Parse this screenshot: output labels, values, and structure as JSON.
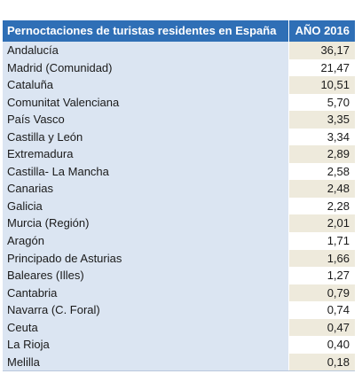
{
  "table": {
    "header": {
      "col1": "Pernoctaciones de turistas residentes en España",
      "col2": "AÑO 2016"
    },
    "rows": [
      {
        "region": "Andalucía",
        "value": "36,17"
      },
      {
        "region": "Madrid (Comunidad)",
        "value": "21,47"
      },
      {
        "region": "Cataluña",
        "value": "10,51"
      },
      {
        "region": "Comunitat Valenciana",
        "value": "5,70"
      },
      {
        "region": "País Vasco",
        "value": "3,35"
      },
      {
        "region": "Castilla y León",
        "value": "3,34"
      },
      {
        "region": "Extremadura",
        "value": "2,89"
      },
      {
        "region": "Castilla- La Mancha",
        "value": "2,58"
      },
      {
        "region": "Canarias",
        "value": "2,48"
      },
      {
        "region": "Galicia",
        "value": "2,28"
      },
      {
        "region": "Murcia (Región)",
        "value": "2,01"
      },
      {
        "region": "Aragón",
        "value": "1,71"
      },
      {
        "region": "Principado de Asturias",
        "value": "1,66"
      },
      {
        "region": "Baleares (Illes)",
        "value": "1,27"
      },
      {
        "region": "Cantabria",
        "value": "0,79"
      },
      {
        "region": "Navarra (C. Foral)",
        "value": "0,74"
      },
      {
        "region": "Ceuta",
        "value": "0,47"
      },
      {
        "region": "La Rioja",
        "value": "0,40"
      },
      {
        "region": "Melilla",
        "value": "0,18"
      }
    ]
  },
  "colors": {
    "header_bg": "#2f6fb6",
    "label_bg": "#dbe5f2",
    "value_alt_bg": "#eeeadc"
  }
}
